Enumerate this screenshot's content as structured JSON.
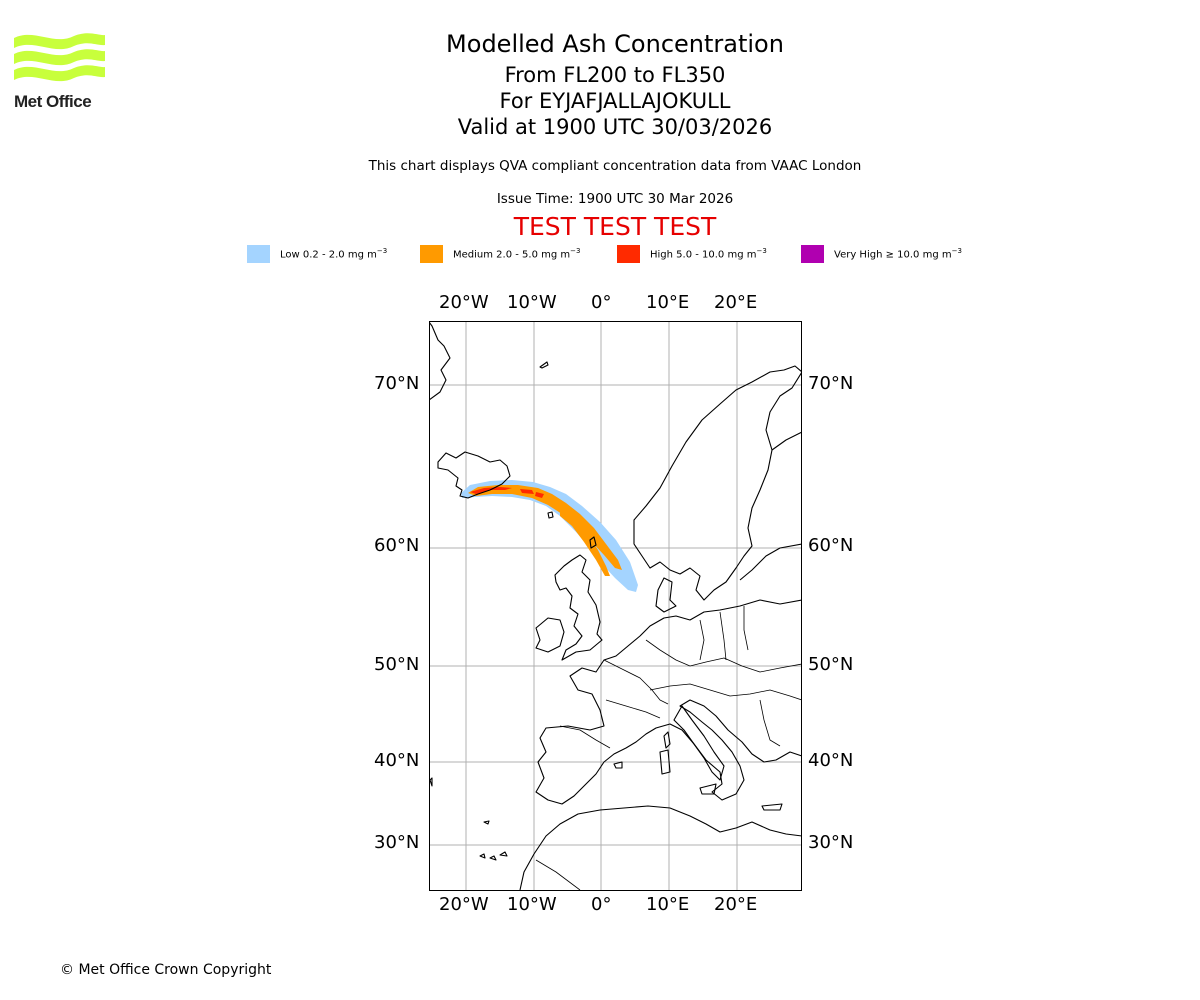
{
  "logo": {
    "name": "Met Office",
    "color": "#c8ff3c"
  },
  "title": {
    "main": "Modelled Ash Concentration",
    "levels": "From FL200 to FL350",
    "volcano": "For EYJAFJALLAJOKULL",
    "valid": "Valid at 1900 UTC 30/03/2026",
    "description": "This chart displays QVA compliant concentration data from VAAC London",
    "issue_time": "Issue Time: 1900 UTC 30 Mar 2026",
    "test_banner": "TEST TEST TEST"
  },
  "legend": [
    {
      "label": "Low 0.2 - 2.0 mg m",
      "sup": "−3",
      "color": "#a4d4ff"
    },
    {
      "label": "Medium 2.0 - 5.0 mg m",
      "sup": "−3",
      "color": "#ff9a00"
    },
    {
      "label": "High 5.0 - 10.0 mg m",
      "sup": "−3",
      "color": "#ff2a00"
    },
    {
      "label": "Very High  ≥  10.0 mg m",
      "sup": "−3",
      "color": "#b000b0"
    }
  ],
  "map": {
    "lon_ticks": [
      "20°W",
      "10°W",
      "0°",
      "10°E",
      "20°E"
    ],
    "lat_ticks": [
      "70°N",
      "60°N",
      "50°N",
      "40°N",
      "30°N"
    ]
  },
  "footer": {
    "copyright": "© Met Office Crown Copyright"
  }
}
